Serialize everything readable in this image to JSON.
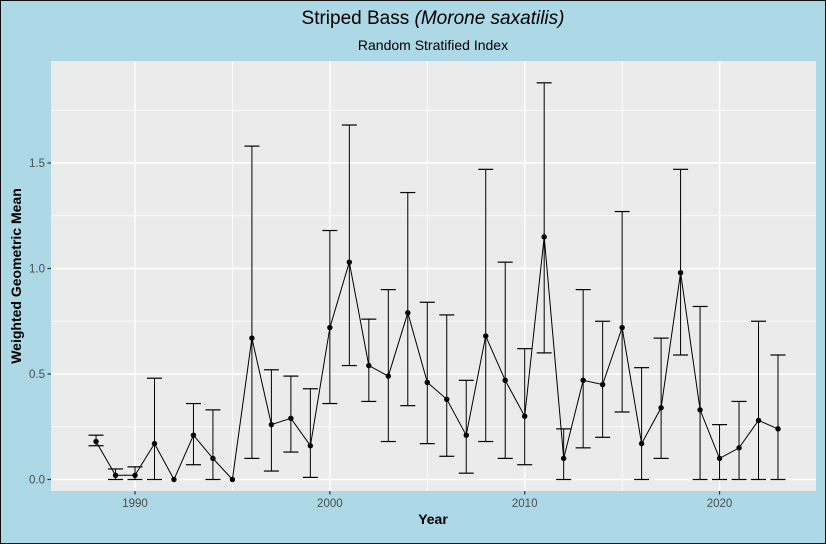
{
  "title": {
    "main": "Striped Bass ",
    "species_italic": "(Morone saxatilis)",
    "subtitle": "Random Stratified Index"
  },
  "axes": {
    "x_label": "Year",
    "y_label": "Weighted Geometric Mean"
  },
  "colors": {
    "outer_background": "#ADD8E6",
    "panel_background": "#EBEBEB",
    "gridline": "#FFFFFF",
    "series": "#000000",
    "tick_label": "#4D4D4D",
    "tick_mark": "#333333",
    "border": "#111111"
  },
  "chart_data": {
    "type": "line",
    "title": "Striped Bass (Morone saxatilis)",
    "subtitle": "Random Stratified Index",
    "xlabel": "Year",
    "ylabel": "Weighted Geometric Mean",
    "legend": "none",
    "grid": true,
    "error_bars": true,
    "x_ticks": [
      1990,
      2000,
      2010,
      2020
    ],
    "x_minor_ticks": [
      1995,
      2005,
      2015
    ],
    "y_ticks": [
      0.0,
      0.5,
      1.0,
      1.5
    ],
    "y_minor_ticks": [
      0.25,
      0.75,
      1.25,
      1.75
    ],
    "xlim": [
      1985.7,
      2025.0
    ],
    "ylim": [
      -0.05,
      1.98
    ],
    "points": [
      {
        "year": 1988,
        "value": 0.18,
        "lower": 0.16,
        "upper": 0.21
      },
      {
        "year": 1989,
        "value": 0.02,
        "lower": 0.0,
        "upper": 0.05
      },
      {
        "year": 1990,
        "value": 0.02,
        "lower": 0.0,
        "upper": 0.06
      },
      {
        "year": 1991,
        "value": 0.17,
        "lower": 0.0,
        "upper": 0.48
      },
      {
        "year": 1992,
        "value": 0.0,
        "lower": 0.0,
        "upper": 0.0
      },
      {
        "year": 1993,
        "value": 0.21,
        "lower": 0.07,
        "upper": 0.36
      },
      {
        "year": 1994,
        "value": 0.1,
        "lower": 0.0,
        "upper": 0.33
      },
      {
        "year": 1995,
        "value": 0.0,
        "lower": 0.0,
        "upper": 0.0
      },
      {
        "year": 1996,
        "value": 0.67,
        "lower": 0.1,
        "upper": 1.58
      },
      {
        "year": 1997,
        "value": 0.26,
        "lower": 0.04,
        "upper": 0.52
      },
      {
        "year": 1998,
        "value": 0.29,
        "lower": 0.13,
        "upper": 0.49
      },
      {
        "year": 1999,
        "value": 0.16,
        "lower": 0.01,
        "upper": 0.43
      },
      {
        "year": 2000,
        "value": 0.72,
        "lower": 0.36,
        "upper": 1.18
      },
      {
        "year": 2001,
        "value": 1.03,
        "lower": 0.54,
        "upper": 1.68
      },
      {
        "year": 2002,
        "value": 0.54,
        "lower": 0.37,
        "upper": 0.76
      },
      {
        "year": 2003,
        "value": 0.49,
        "lower": 0.18,
        "upper": 0.9
      },
      {
        "year": 2004,
        "value": 0.79,
        "lower": 0.35,
        "upper": 1.36
      },
      {
        "year": 2005,
        "value": 0.46,
        "lower": 0.17,
        "upper": 0.84
      },
      {
        "year": 2006,
        "value": 0.38,
        "lower": 0.11,
        "upper": 0.78
      },
      {
        "year": 2007,
        "value": 0.21,
        "lower": 0.03,
        "upper": 0.47
      },
      {
        "year": 2008,
        "value": 0.68,
        "lower": 0.18,
        "upper": 1.47
      },
      {
        "year": 2009,
        "value": 0.47,
        "lower": 0.1,
        "upper": 1.03
      },
      {
        "year": 2010,
        "value": 0.3,
        "lower": 0.07,
        "upper": 0.62
      },
      {
        "year": 2011,
        "value": 1.15,
        "lower": 0.6,
        "upper": 1.88
      },
      {
        "year": 2012,
        "value": 0.1,
        "lower": 0.0,
        "upper": 0.24
      },
      {
        "year": 2013,
        "value": 0.47,
        "lower": 0.15,
        "upper": 0.9
      },
      {
        "year": 2014,
        "value": 0.45,
        "lower": 0.2,
        "upper": 0.75
      },
      {
        "year": 2015,
        "value": 0.72,
        "lower": 0.32,
        "upper": 1.27
      },
      {
        "year": 2016,
        "value": 0.17,
        "lower": 0.0,
        "upper": 0.53
      },
      {
        "year": 2017,
        "value": 0.34,
        "lower": 0.1,
        "upper": 0.67
      },
      {
        "year": 2018,
        "value": 0.98,
        "lower": 0.59,
        "upper": 1.47
      },
      {
        "year": 2019,
        "value": 0.33,
        "lower": 0.0,
        "upper": 0.82
      },
      {
        "year": 2020,
        "value": 0.1,
        "lower": 0.0,
        "upper": 0.26
      },
      {
        "year": 2021,
        "value": 0.15,
        "lower": 0.0,
        "upper": 0.37
      },
      {
        "year": 2022,
        "value": 0.28,
        "lower": 0.0,
        "upper": 0.75
      },
      {
        "year": 2023,
        "value": 0.24,
        "lower": 0.0,
        "upper": 0.59
      }
    ]
  }
}
